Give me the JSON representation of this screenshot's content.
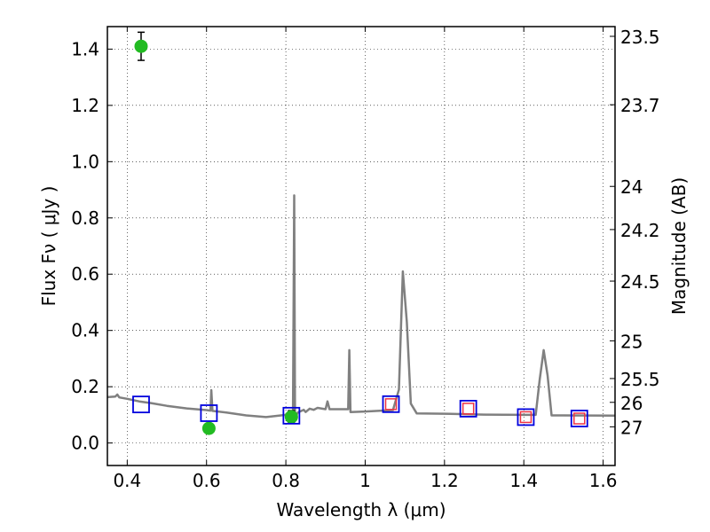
{
  "chart_data": {
    "type": "scatter",
    "xlabel": "Wavelength  λ (μm)",
    "ylabel": "Flux  Fν  ( μJy )",
    "y2label": "Magnitude (AB)",
    "xlim": [
      0.35,
      1.63
    ],
    "ylim": [
      -0.08,
      1.48
    ],
    "grid": true,
    "x_ticks": [
      0.4,
      0.6,
      0.8,
      1.0,
      1.2,
      1.4,
      1.6
    ],
    "x_tick_labels": [
      "0.4",
      "0.6",
      "0.8",
      "1",
      "1.2",
      "1.4",
      "1.6"
    ],
    "y_ticks": [
      0.0,
      0.2,
      0.4,
      0.6,
      0.8,
      1.0,
      1.2,
      1.4
    ],
    "y_tick_labels": [
      "0.0",
      "0.2",
      "0.4",
      "0.6",
      "0.8",
      "1.0",
      "1.2",
      "1.4"
    ],
    "magnitude_ticks": [
      {
        "label": "23.5",
        "flux": 1.4454
      },
      {
        "label": "23.7",
        "flux": 1.2023
      },
      {
        "label": "24",
        "flux": 0.912
      },
      {
        "label": "24.2",
        "flux": 0.7586
      },
      {
        "label": "24.5",
        "flux": 0.5754
      },
      {
        "label": "25",
        "flux": 0.3631
      },
      {
        "label": "25.5",
        "flux": 0.2291
      },
      {
        "label": "26",
        "flux": 0.1445
      },
      {
        "label": "27",
        "flux": 0.0575
      }
    ],
    "model_spectrum": {
      "color": "#808080",
      "points": [
        [
          0.35,
          0.163
        ],
        [
          0.37,
          0.165
        ],
        [
          0.375,
          0.172
        ],
        [
          0.38,
          0.162
        ],
        [
          0.4,
          0.157
        ],
        [
          0.43,
          0.148
        ],
        [
          0.46,
          0.142
        ],
        [
          0.5,
          0.132
        ],
        [
          0.55,
          0.123
        ],
        [
          0.6,
          0.117
        ],
        [
          0.61,
          0.115
        ],
        [
          0.612,
          0.188
        ],
        [
          0.615,
          0.114
        ],
        [
          0.65,
          0.108
        ],
        [
          0.7,
          0.098
        ],
        [
          0.75,
          0.092
        ],
        [
          0.8,
          0.1
        ],
        [
          0.815,
          0.1
        ],
        [
          0.818,
          0.09
        ],
        [
          0.821,
          0.88
        ],
        [
          0.823,
          0.09
        ],
        [
          0.83,
          0.108
        ],
        [
          0.845,
          0.118
        ],
        [
          0.85,
          0.11
        ],
        [
          0.86,
          0.122
        ],
        [
          0.87,
          0.118
        ],
        [
          0.88,
          0.125
        ],
        [
          0.9,
          0.12
        ],
        [
          0.905,
          0.148
        ],
        [
          0.91,
          0.12
        ],
        [
          0.95,
          0.12
        ],
        [
          0.957,
          0.12
        ],
        [
          0.96,
          0.33
        ],
        [
          0.963,
          0.11
        ],
        [
          1.0,
          0.112
        ],
        [
          1.07,
          0.117
        ],
        [
          1.085,
          0.19
        ],
        [
          1.095,
          0.61
        ],
        [
          1.105,
          0.43
        ],
        [
          1.115,
          0.14
        ],
        [
          1.13,
          0.105
        ],
        [
          1.2,
          0.104
        ],
        [
          1.3,
          0.101
        ],
        [
          1.4,
          0.1
        ],
        [
          1.43,
          0.1
        ],
        [
          1.44,
          0.225
        ],
        [
          1.45,
          0.33
        ],
        [
          1.46,
          0.24
        ],
        [
          1.47,
          0.098
        ],
        [
          1.63,
          0.097
        ]
      ]
    },
    "series": [
      {
        "marker": "circle",
        "color": "#22bb22",
        "points": [
          {
            "x": 0.435,
            "y": 1.41,
            "err": 0.05
          },
          {
            "x": 0.606,
            "y": 0.052,
            "err": 0.017
          },
          {
            "x": 0.814,
            "y": 0.093,
            "err": 0.022
          }
        ]
      },
      {
        "marker": "square-open",
        "color": "#0000dd",
        "points": [
          {
            "x": 0.435,
            "y": 0.137
          },
          {
            "x": 0.606,
            "y": 0.106
          },
          {
            "x": 0.814,
            "y": 0.097
          },
          {
            "x": 1.065,
            "y": 0.138
          },
          {
            "x": 1.26,
            "y": 0.122
          },
          {
            "x": 1.405,
            "y": 0.092
          },
          {
            "x": 1.54,
            "y": 0.087
          }
        ]
      },
      {
        "marker": "square-open-small",
        "color": "#ee3344",
        "points": [
          {
            "x": 1.065,
            "y": 0.138
          },
          {
            "x": 1.26,
            "y": 0.122
          },
          {
            "x": 1.405,
            "y": 0.092
          },
          {
            "x": 1.54,
            "y": 0.087
          }
        ]
      }
    ]
  }
}
